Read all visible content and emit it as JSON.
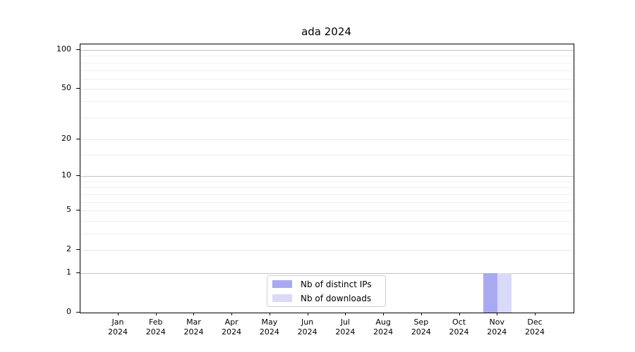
{
  "title": "ada 2024",
  "chart_data": {
    "type": "bar",
    "title": "ada 2024",
    "categories": [
      "Jan",
      "Feb",
      "Mar",
      "Apr",
      "May",
      "Jun",
      "Jul",
      "Aug",
      "Sep",
      "Oct",
      "Nov",
      "Dec"
    ],
    "category_year": "2024",
    "series": [
      {
        "name": "Nb of distinct IPs",
        "color": "#a9a9f2",
        "values": [
          0,
          0,
          0,
          0,
          0,
          0,
          0,
          0,
          0,
          0,
          1,
          0
        ]
      },
      {
        "name": "Nb of downloads",
        "color": "#d9d9f9",
        "values": [
          0,
          0,
          0,
          0,
          0,
          0,
          0,
          0,
          0,
          0,
          1,
          0
        ]
      }
    ],
    "y_axis": {
      "scale": "log1p",
      "lim": [
        0,
        110.6
      ],
      "labeled_ticks": [
        0,
        1,
        2,
        5,
        10,
        20,
        50,
        100
      ],
      "decade_ticks": [
        1,
        10,
        100
      ],
      "minor_ticks": [
        3,
        4,
        6,
        7,
        8,
        9,
        15,
        30,
        40,
        60,
        70,
        80,
        90
      ]
    },
    "grid": "both",
    "legend": {
      "position": "lower center",
      "entries": [
        "Nb of distinct IPs",
        "Nb of downloads"
      ]
    }
  },
  "colors": {
    "background": "#ffffff",
    "spine": "#000000",
    "grid_decade": "#c3c3c3",
    "grid_labeled": "#e9e9e9",
    "grid_minor": "#efefef",
    "bar_distinct_ips": "#a9a9f2",
    "bar_downloads": "#d9d9f9",
    "legend_border": "#d0d0d0",
    "text": "#000000"
  }
}
